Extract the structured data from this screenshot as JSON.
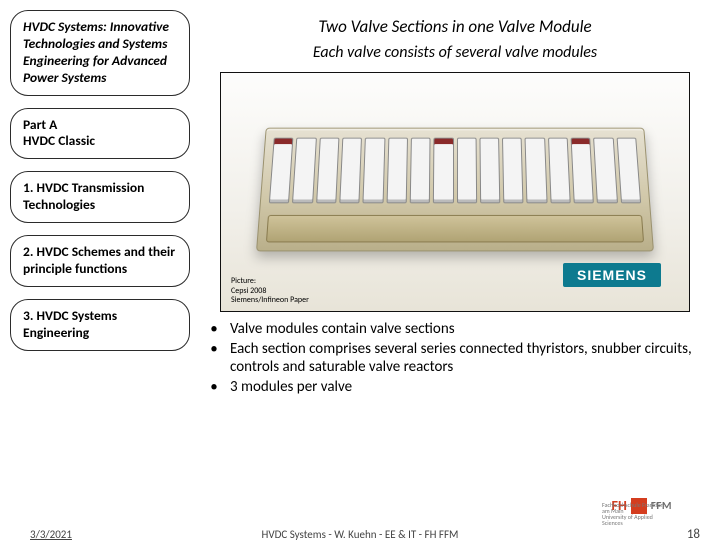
{
  "sidebar": {
    "title": "HVDC Systems: Innovative Technologies and Systems Engineering for Advanced Power Systems",
    "part_label": "Part A",
    "part_sub": "HVDC Classic",
    "toc": [
      "1. HVDC Transmission Technologies",
      "2. HVDC Schemes and their principle functions",
      "3. HVDC Systems Engineering"
    ]
  },
  "main": {
    "header": "Two Valve Sections in one Valve Module",
    "subhead": "Each valve consists of several valve modules",
    "siemens_label": "SIEMENS",
    "caption_lines": [
      "Picture:",
      "Cepsi 2008",
      "Siemens/Infineon Paper"
    ],
    "bullets": [
      "Valve modules contain valve sections",
      "Each section comprises several series connected thyristors, snubber circuits, controls and saturable valve reactors",
      "3 modules per valve"
    ]
  },
  "footer": {
    "date": "3/3/2021",
    "center": "HVDC Systems - W. Kuehn - EE & IT - FH FFM",
    "page": "18",
    "fh_label": "FFM"
  },
  "colors": {
    "siemens_bg": "#0d7a8f",
    "fh_red": "#d43d1f"
  }
}
